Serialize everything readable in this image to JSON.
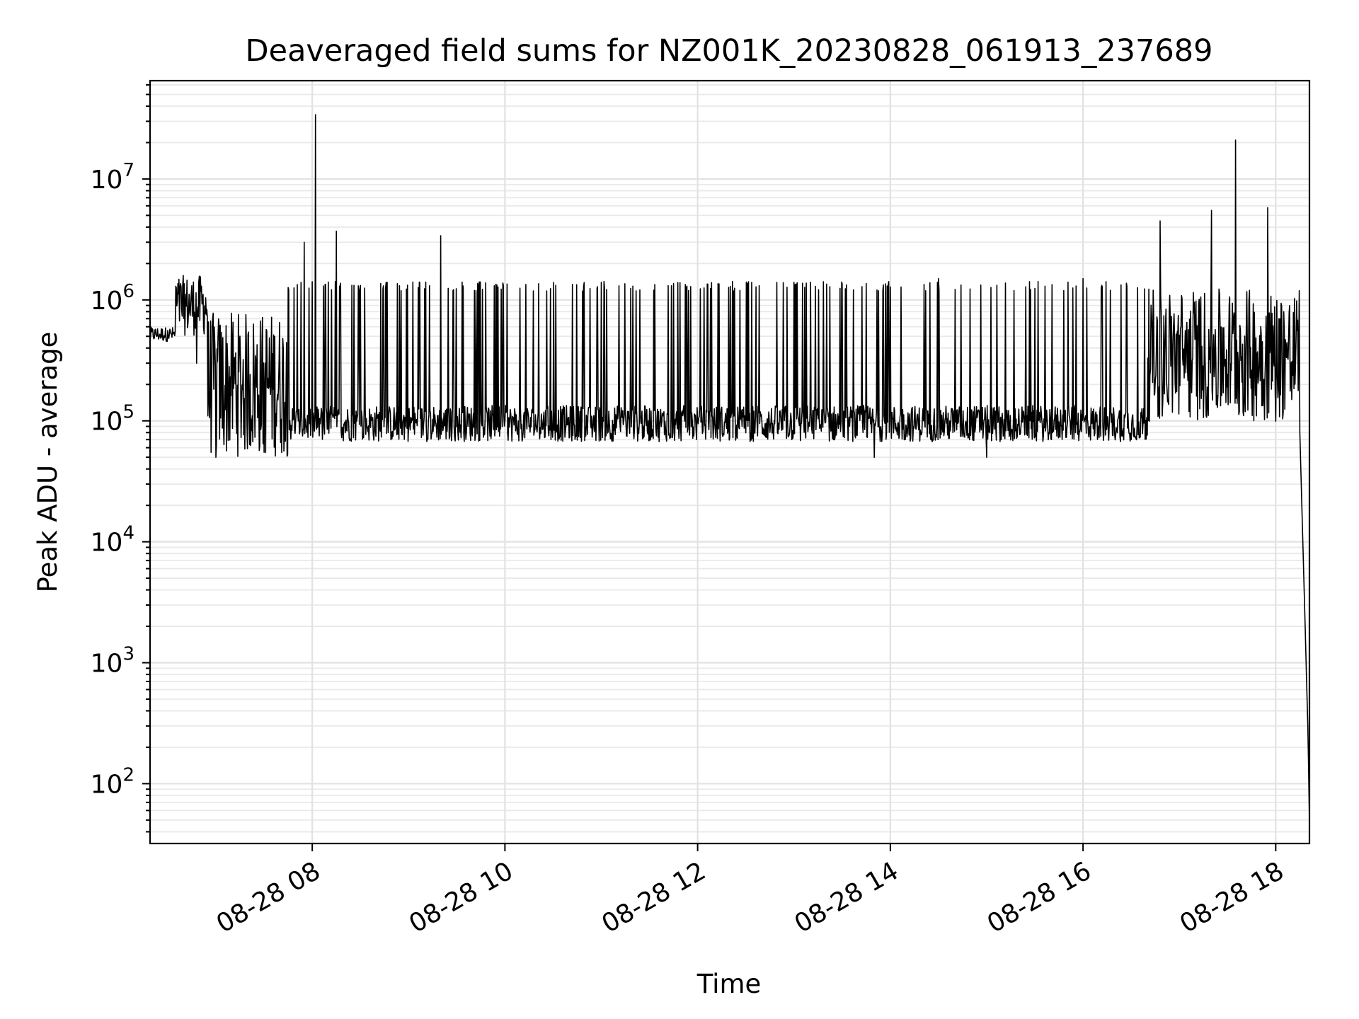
{
  "chart_data": {
    "type": "line",
    "title": "Deaveraged field sums for NZ001K_20230828_061913_237689",
    "xlabel": "Time",
    "ylabel": "Peak ADU - average",
    "yscale": "log",
    "grid": true,
    "x_ticks": [
      "08-28 08",
      "08-28 10",
      "08-28 12",
      "08-28 14",
      "08-28 16",
      "08-28 18"
    ],
    "x_tick_values": [
      "2023-08-28T08:00",
      "2023-08-28T10:00",
      "2023-08-28T12:00",
      "2023-08-28T14:00",
      "2023-08-28T16:00",
      "2023-08-28T18:00"
    ],
    "y_ticks": [
      {
        "base": "10",
        "exp": "2",
        "value": 100
      },
      {
        "base": "10",
        "exp": "3",
        "value": 1000
      },
      {
        "base": "10",
        "exp": "4",
        "value": 10000
      },
      {
        "base": "10",
        "exp": "5",
        "value": 100000
      },
      {
        "base": "10",
        "exp": "6",
        "value": 1000000
      },
      {
        "base": "10",
        "exp": "7",
        "value": 10000000
      }
    ],
    "xlim": [
      "2023-08-28T06:19",
      "2023-08-28T18:21"
    ],
    "ylim": [
      32,
      65000000
    ],
    "series": [
      {
        "color": "#000000",
        "points": [
          [
            "2023-08-28T06:19",
            500000
          ],
          [
            "2023-08-28T06:30",
            560000
          ],
          [
            "2023-08-28T06:35",
            1300000
          ],
          [
            "2023-08-28T06:40",
            700000
          ],
          [
            "2023-08-28T06:48",
            300000
          ],
          [
            "2023-08-28T06:55",
            110000
          ],
          [
            "2023-08-28T07:00",
            50000
          ],
          [
            "2023-08-28T07:30",
            55000
          ],
          [
            "2023-08-28T07:55",
            3000000
          ],
          [
            "2023-08-28T08:02",
            34000000
          ],
          [
            "2023-08-28T08:15",
            3700000
          ],
          [
            "2023-08-28T09:00",
            90000
          ],
          [
            "2023-08-28T09:20",
            3400000
          ],
          [
            "2023-08-28T10:00",
            100000
          ],
          [
            "2023-08-28T11:00",
            1400000
          ],
          [
            "2023-08-28T12:00",
            100000
          ],
          [
            "2023-08-28T13:00",
            1400000
          ],
          [
            "2023-08-28T13:50",
            50000
          ],
          [
            "2023-08-28T14:30",
            1500000
          ],
          [
            "2023-08-28T15:00",
            50000
          ],
          [
            "2023-08-28T16:00",
            1500000
          ],
          [
            "2023-08-28T16:48",
            4500000
          ],
          [
            "2023-08-28T17:20",
            5500000
          ],
          [
            "2023-08-28T17:35",
            21000000
          ],
          [
            "2023-08-28T17:55",
            5800000
          ],
          [
            "2023-08-28T18:05",
            800000
          ],
          [
            "2023-08-28T18:10",
            150000
          ],
          [
            "2023-08-28T18:15",
            80000
          ],
          [
            "2023-08-28T18:20",
            300
          ],
          [
            "2023-08-28T18:21",
            50
          ]
        ]
      }
    ]
  }
}
